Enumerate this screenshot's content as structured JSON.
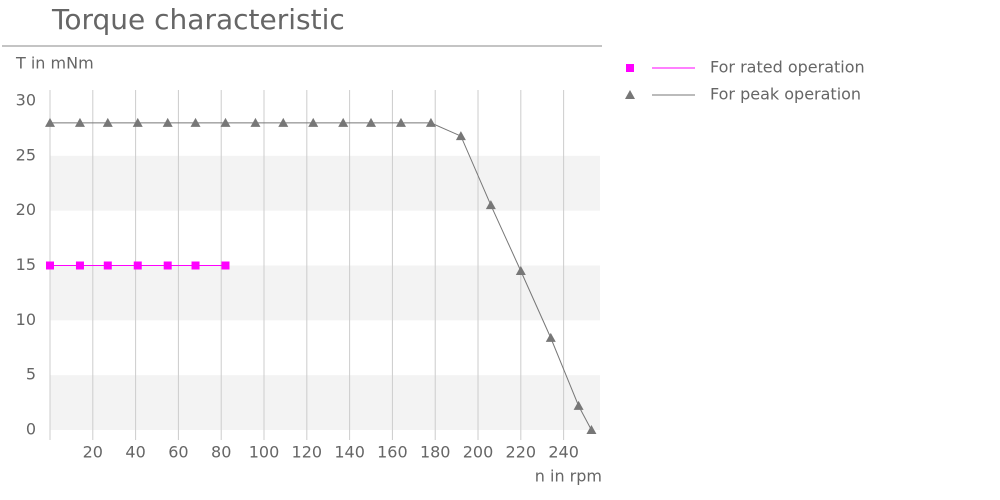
{
  "chart_data": {
    "type": "line",
    "title": "Torque characteristic",
    "y_label": "T in mNm",
    "x_label": "n in rpm",
    "xlim": [
      0,
      257
    ],
    "xticks": [
      20,
      40,
      60,
      80,
      100,
      120,
      140,
      160,
      180,
      200,
      220,
      240
    ],
    "ylim": [
      0,
      30
    ],
    "yticks": [
      0,
      5,
      10,
      15,
      20,
      25,
      30
    ],
    "grid": true,
    "series": [
      {
        "name": "For rated operation",
        "color": "#ff00ff",
        "marker": "square",
        "x": [
          0,
          14,
          27,
          41,
          55,
          68,
          82
        ],
        "values": [
          15,
          15,
          15,
          15,
          15,
          15,
          15
        ]
      },
      {
        "name": "For peak operation",
        "color": "#777777",
        "marker": "triangle",
        "x": [
          0,
          14,
          27,
          41,
          55,
          68,
          82,
          96,
          109,
          123,
          137,
          150,
          164,
          178,
          192,
          206,
          220,
          234,
          247,
          253
        ],
        "values": [
          28,
          28,
          28,
          28,
          28,
          28,
          28,
          28,
          28,
          28,
          28,
          28,
          28,
          28,
          26.8,
          20.5,
          14.5,
          8.4,
          2.2,
          0
        ]
      }
    ]
  }
}
